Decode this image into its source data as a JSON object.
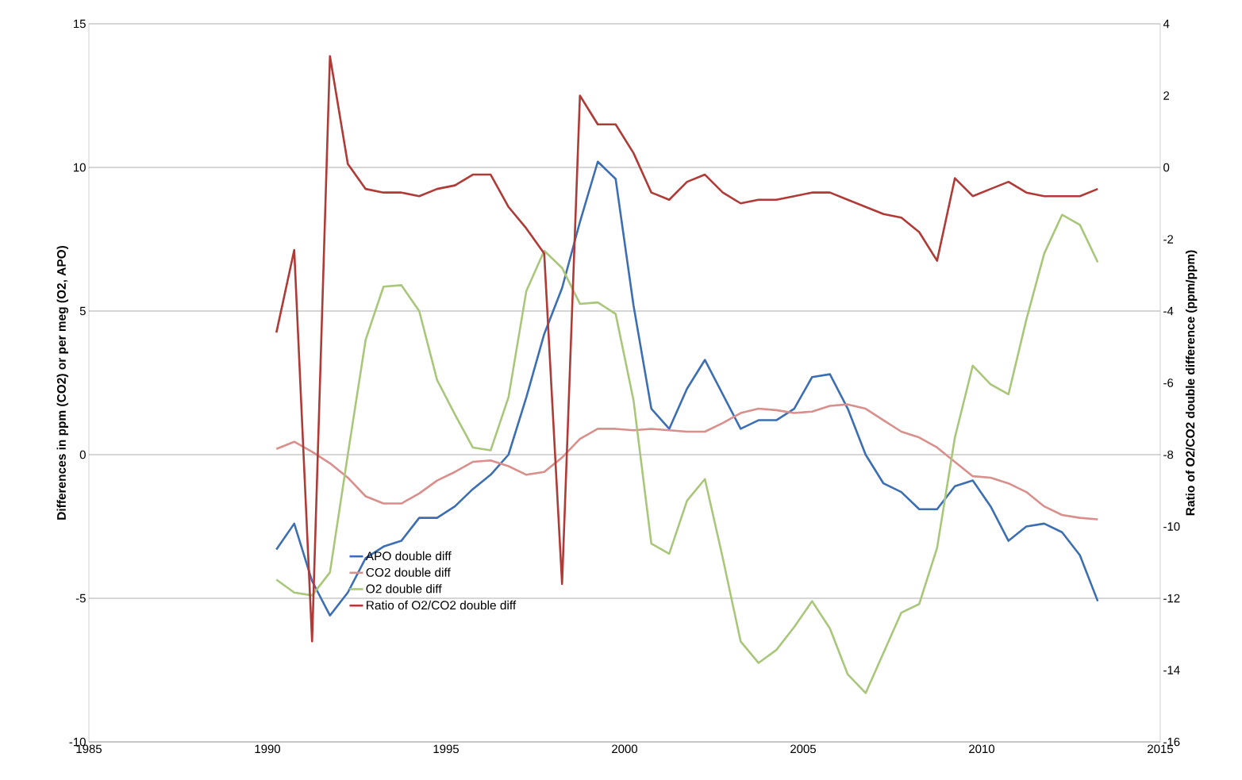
{
  "chart_data": {
    "type": "line",
    "ylabel": "Differences in  ppm (CO2) or per meg (O2, APO)",
    "y2label": "Ratio of O2/CO2 double difference  (ppm/ppm)",
    "x": [
      1990.25,
      1990.75,
      1991.25,
      1991.75,
      1992.25,
      1992.75,
      1993.25,
      1993.75,
      1994.25,
      1994.75,
      1995.25,
      1995.75,
      1996.25,
      1996.75,
      1997.25,
      1997.75,
      1998.25,
      1998.75,
      1999.25,
      1999.75,
      2000.25,
      2000.75,
      2001.25,
      2001.75,
      2002.25,
      2002.75,
      2003.25,
      2003.75,
      2004.25,
      2004.75,
      2005.25,
      2005.75,
      2006.25,
      2006.75,
      2007.25,
      2007.75,
      2008.25,
      2008.75,
      2009.25,
      2009.75,
      2010.25,
      2010.75,
      2011.25,
      2011.75,
      2012.25,
      2012.75,
      2013.25
    ],
    "series": [
      {
        "name": "APO double diff",
        "color": "#3c6eb4",
        "values": [
          -3.3,
          -2.4,
          -4.4,
          -5.6,
          -4.8,
          -3.6,
          -3.2,
          -3.0,
          -2.2,
          -2.2,
          -1.8,
          -1.2,
          -0.7,
          0.0,
          2.0,
          4.2,
          5.8,
          8.1,
          10.2,
          9.6,
          5.2,
          1.6,
          0.9,
          2.3,
          3.3,
          2.1,
          0.9,
          1.2,
          1.2,
          1.6,
          2.7,
          2.8,
          1.6,
          0.0,
          -1.0,
          -1.3,
          -1.9,
          -1.9,
          -1.1,
          -0.9,
          -1.8,
          -3.0,
          -2.5,
          -2.4,
          -2.7,
          -3.5,
          -5.1
        ]
      },
      {
        "name": "CO2 double diff",
        "color": "#d98f8c",
        "values": [
          0.2,
          0.45,
          0.1,
          -0.3,
          -0.8,
          -1.45,
          -1.7,
          -1.7,
          -1.35,
          -0.9,
          -0.6,
          -0.25,
          -0.2,
          -0.4,
          -0.7,
          -0.6,
          -0.1,
          0.55,
          0.9,
          0.9,
          0.85,
          0.9,
          0.85,
          0.8,
          0.8,
          1.1,
          1.45,
          1.6,
          1.55,
          1.45,
          1.5,
          1.7,
          1.75,
          1.6,
          1.2,
          0.8,
          0.6,
          0.25,
          -0.25,
          -0.75,
          -0.8,
          -1.0,
          -1.3,
          -1.8,
          -2.1,
          -2.2,
          -2.25
        ]
      },
      {
        "name": "O2 double diff",
        "color": "#a9c77a",
        "values": [
          -4.35,
          -4.8,
          -4.9,
          -4.1,
          0.0,
          4.0,
          5.85,
          5.9,
          5.0,
          2.6,
          1.4,
          0.25,
          0.15,
          2.0,
          5.7,
          7.1,
          6.5,
          5.25,
          5.3,
          4.9,
          1.9,
          -3.1,
          -3.45,
          -1.6,
          -0.85,
          -3.6,
          -6.5,
          -7.25,
          -6.8,
          -6.0,
          -5.1,
          -6.05,
          -7.65,
          -8.3,
          -6.9,
          -5.5,
          -5.2,
          -3.25,
          0.6,
          3.1,
          2.45,
          2.1,
          4.7,
          7.0,
          8.35,
          8.0,
          6.7
        ]
      },
      {
        "name": "Ratio of O2/CO2 double diff",
        "color": "#b03a36",
        "axis": "y2",
        "values": [
          -4.6,
          -2.3,
          -13.2,
          3.1,
          0.1,
          -0.6,
          -0.7,
          -0.7,
          -0.8,
          -0.6,
          -0.5,
          -0.2,
          -0.2,
          -1.1,
          -1.7,
          -2.4,
          -11.6,
          2.0,
          1.2,
          1.2,
          0.4,
          -0.7,
          -0.9,
          -0.4,
          -0.2,
          -0.7,
          -1.0,
          -0.9,
          -0.9,
          -0.8,
          -0.7,
          -0.7,
          -0.9,
          -1.1,
          -1.3,
          -1.4,
          -1.8,
          -2.6,
          -0.3,
          -0.8,
          -0.6,
          -0.4,
          -0.7,
          -0.8,
          -0.8,
          -0.8,
          -0.6
        ]
      }
    ],
    "xlim": [
      1985,
      2015
    ],
    "xticks": [
      1985,
      1990,
      1995,
      2000,
      2005,
      2010,
      2015
    ],
    "ylim": [
      -10,
      15
    ],
    "yticks": [
      -10,
      -5,
      0,
      5,
      10,
      15
    ],
    "y2lim": [
      -16,
      4
    ],
    "y2ticks": [
      -16,
      -14,
      -12,
      -10,
      -8,
      -6,
      -4,
      -2,
      0,
      2,
      4
    ],
    "grid": "y",
    "legend": "bottom left",
    "marker": "none",
    "line_style": "solid"
  }
}
